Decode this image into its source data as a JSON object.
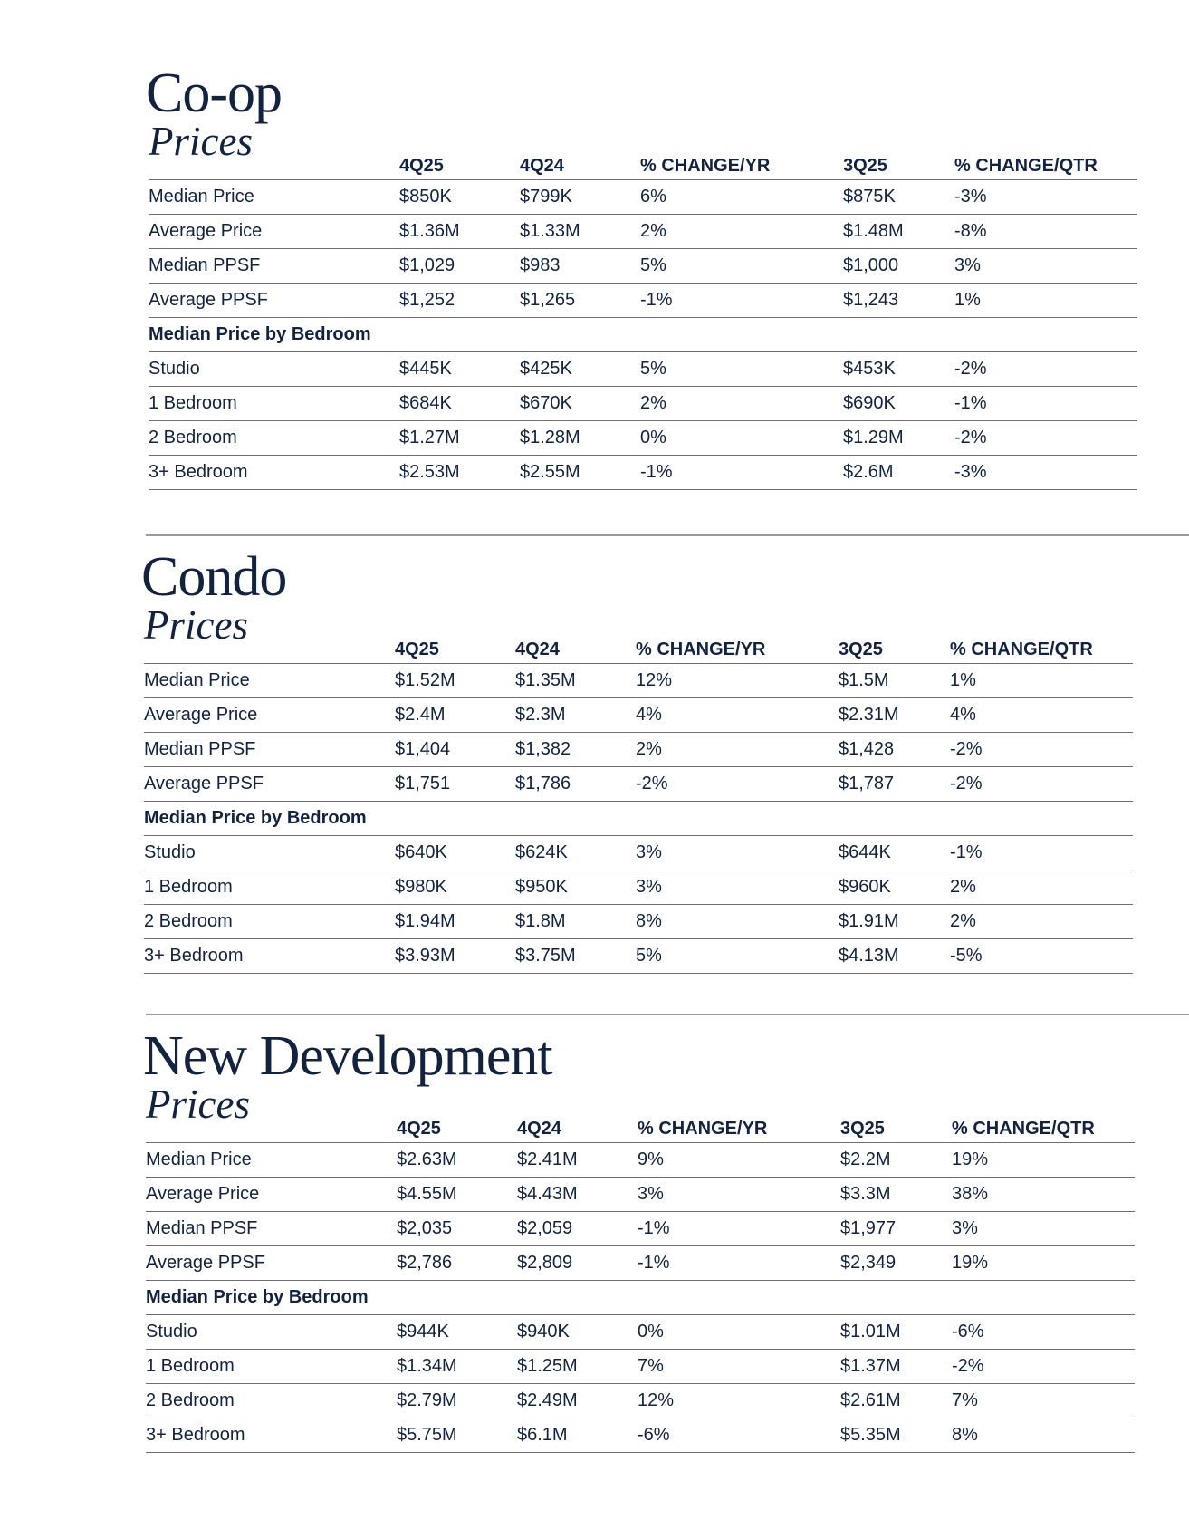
{
  "columns": [
    "4Q25",
    "4Q24",
    "% CHANGE/YR",
    "3Q25",
    "% CHANGE/QTR"
  ],
  "sections": [
    {
      "title": "Co-op",
      "subtitle": "Prices",
      "rows": [
        [
          "Median Price",
          "$850K",
          "$799K",
          "6%",
          "$875K",
          "-3%"
        ],
        [
          "Average Price",
          "$1.36M",
          "$1.33M",
          "2%",
          "$1.48M",
          "-8%"
        ],
        [
          "Median PPSF",
          "$1,029",
          "$983",
          "5%",
          "$1,000",
          "3%"
        ],
        [
          "Average PPSF",
          "$1,252",
          "$1,265",
          "-1%",
          "$1,243",
          "1%"
        ]
      ],
      "bedroom_heading": "Median Price by Bedroom",
      "bedroom_rows": [
        [
          "Studio",
          "$445K",
          "$425K",
          "5%",
          "$453K",
          "-2%"
        ],
        [
          "1 Bedroom",
          "$684K",
          "$670K",
          "2%",
          "$690K",
          "-1%"
        ],
        [
          "2 Bedroom",
          "$1.27M",
          "$1.28M",
          "0%",
          "$1.29M",
          "-2%"
        ],
        [
          "3+ Bedroom",
          "$2.53M",
          "$2.55M",
          "-1%",
          "$2.6M",
          "-3%"
        ]
      ]
    },
    {
      "title": "Condo",
      "subtitle": "Prices",
      "rows": [
        [
          "Median Price",
          "$1.52M",
          "$1.35M",
          "12%",
          "$1.5M",
          "1%"
        ],
        [
          "Average Price",
          "$2.4M",
          "$2.3M",
          "4%",
          "$2.31M",
          "4%"
        ],
        [
          "Median PPSF",
          "$1,404",
          "$1,382",
          "2%",
          "$1,428",
          "-2%"
        ],
        [
          "Average PPSF",
          "$1,751",
          "$1,786",
          "-2%",
          "$1,787",
          "-2%"
        ]
      ],
      "bedroom_heading": "Median Price by Bedroom",
      "bedroom_rows": [
        [
          "Studio",
          "$640K",
          "$624K",
          "3%",
          "$644K",
          "-1%"
        ],
        [
          "1 Bedroom",
          "$980K",
          "$950K",
          "3%",
          "$960K",
          "2%"
        ],
        [
          "2 Bedroom",
          "$1.94M",
          "$1.8M",
          "8%",
          "$1.91M",
          "2%"
        ],
        [
          "3+ Bedroom",
          "$3.93M",
          "$3.75M",
          "5%",
          "$4.13M",
          "-5%"
        ]
      ]
    },
    {
      "title": "New Development",
      "subtitle": "Prices",
      "rows": [
        [
          "Median Price",
          "$2.63M",
          "$2.41M",
          "9%",
          "$2.2M",
          "19%"
        ],
        [
          "Average Price",
          "$4.55M",
          "$4.43M",
          "3%",
          "$3.3M",
          "38%"
        ],
        [
          "Median PPSF",
          "$2,035",
          "$2,059",
          "-1%",
          "$1,977",
          "3%"
        ],
        [
          "Average PPSF",
          "$2,786",
          "$2,809",
          "-1%",
          "$2,349",
          "19%"
        ]
      ],
      "bedroom_heading": "Median Price by Bedroom",
      "bedroom_rows": [
        [
          "Studio",
          "$944K",
          "$940K",
          "0%",
          "$1.01M",
          "-6%"
        ],
        [
          "1 Bedroom",
          "$1.34M",
          "$1.25M",
          "7%",
          "$1.37M",
          "-2%"
        ],
        [
          "2 Bedroom",
          "$2.79M",
          "$2.49M",
          "12%",
          "$2.61M",
          "7%"
        ],
        [
          "3+ Bedroom",
          "$5.75M",
          "$6.1M",
          "-6%",
          "$5.35M",
          "8%"
        ]
      ]
    }
  ]
}
